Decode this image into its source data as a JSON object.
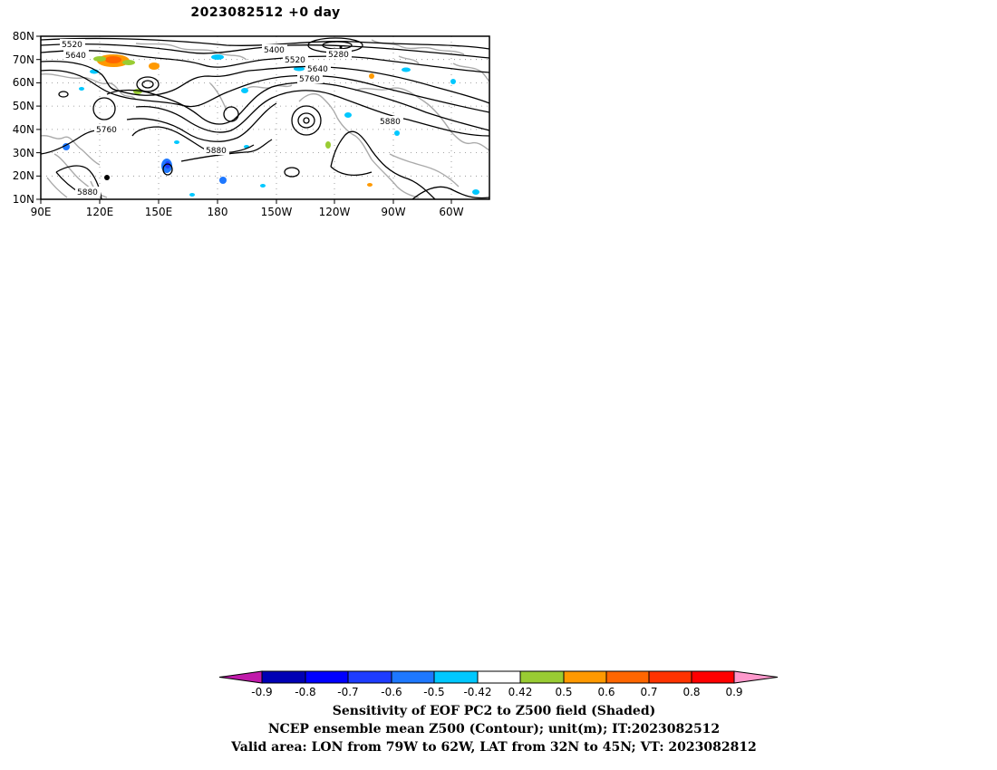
{
  "title": "2023082512 +0 day",
  "map": {
    "lat_ticks": [
      "80N",
      "70N",
      "60N",
      "50N",
      "40N",
      "30N",
      "20N",
      "10N"
    ],
    "lon_ticks": [
      "90E",
      "120E",
      "150E",
      "180",
      "150W",
      "120W",
      "90W",
      "60W"
    ],
    "contour_labels": [
      "5520",
      "5640",
      "5400",
      "5280",
      "5520",
      "5640",
      "5760",
      "5880",
      "5760",
      "5880",
      "5880"
    ],
    "contour_color": "#000000",
    "coast_color": "#aaaaaa"
  },
  "colorbar": {
    "tick_labels": [
      "-0.9",
      "-0.8",
      "-0.7",
      "-0.6",
      "-0.5",
      "-0.42",
      "0.42",
      "0.5",
      "0.6",
      "0.7",
      "0.8",
      "0.9"
    ],
    "colors": [
      "#c01aaa",
      "#0000b4",
      "#0000ff",
      "#1e3cff",
      "#1e78ff",
      "#00c8ff",
      "#ffffff",
      "#99cc33",
      "#ff9900",
      "#ff6600",
      "#ff3300",
      "#ff0000",
      "#ff99cc"
    ]
  },
  "captions": {
    "line1": "Sensitivity of EOF PC2 to Z500 field (Shaded)",
    "line2": "NCEP ensemble mean Z500 (Contour); unit(m); IT:2023082512",
    "line3": "Valid area: LON from 79W to 62W, LAT from 32N to 45N; VT: 2023082812"
  }
}
